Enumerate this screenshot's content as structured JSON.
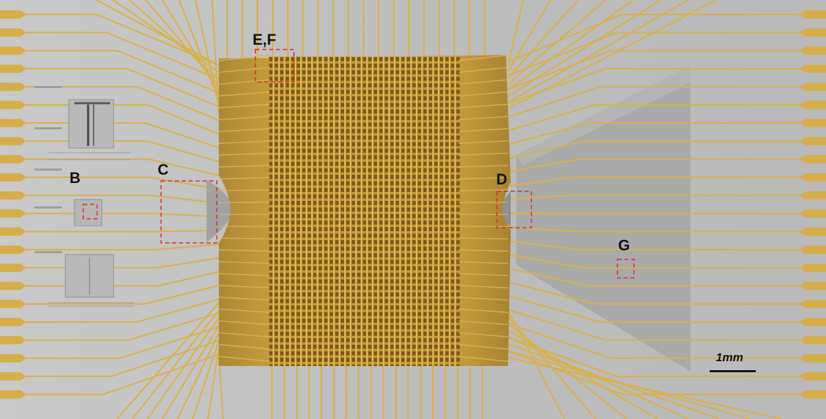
{
  "labels": {
    "b": "B",
    "c": "C",
    "d": "D",
    "ef": "E,F",
    "g": "G"
  },
  "scale_bar": {
    "text": "1mm"
  },
  "colors": {
    "substrate": "#c2c2c2",
    "gold": "#d6ad4a",
    "membrane": "#bf9228",
    "wedge": "#ababab",
    "callout": "#d62a2a"
  }
}
